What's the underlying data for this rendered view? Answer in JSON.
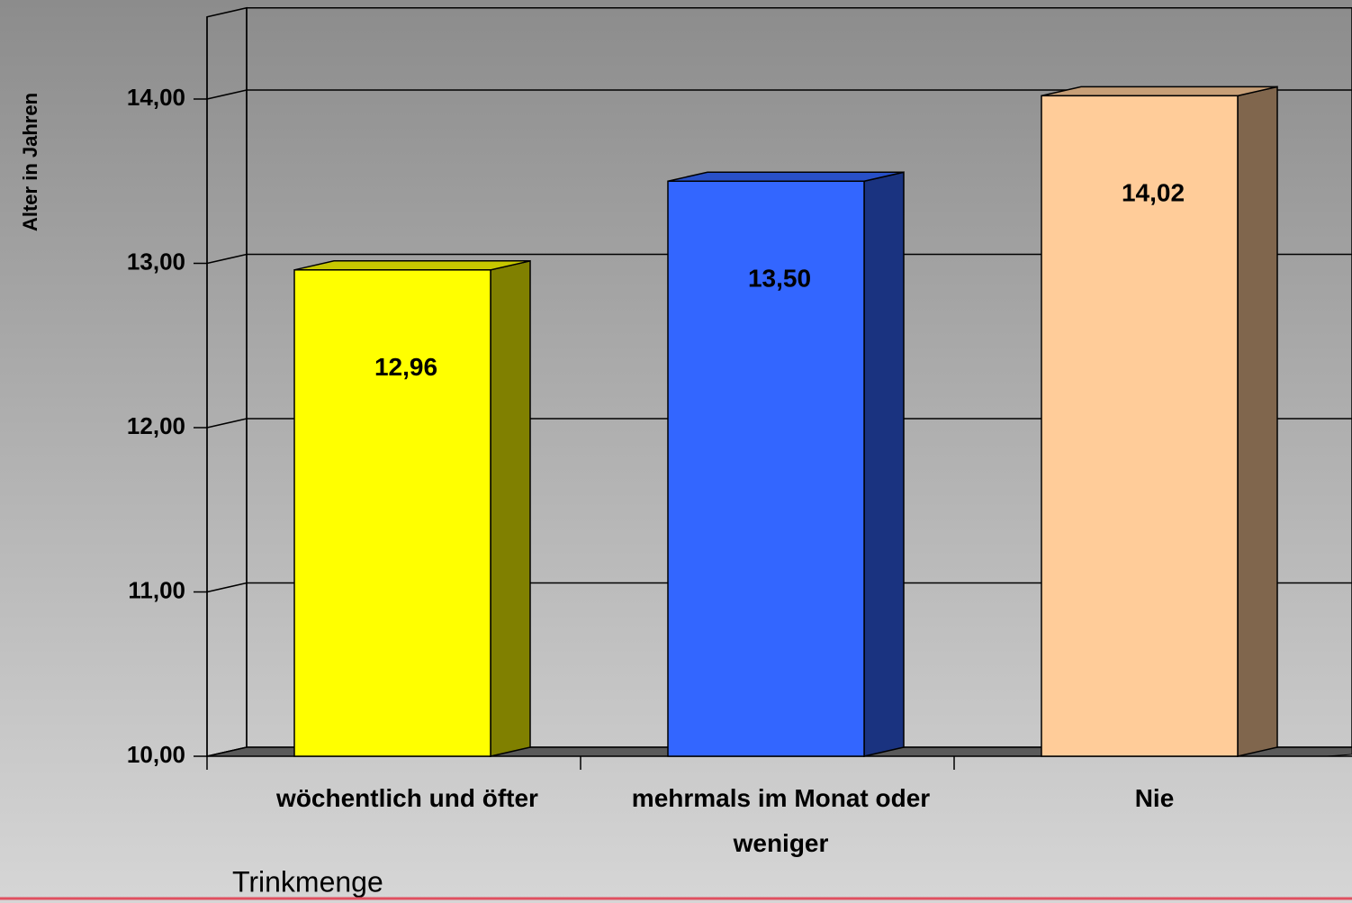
{
  "chart_data": {
    "type": "bar3d",
    "y_axis_label": "Alter in Jahren",
    "x_axis_label": "Trinkmenge",
    "categories": [
      "wöchentlich und öfter",
      "mehrmals im Monat oder weniger",
      "Nie"
    ],
    "values": [
      12.96,
      13.5,
      14.02
    ],
    "value_labels": [
      "12,96",
      "13,50",
      "14,02"
    ],
    "colors": [
      "#ffff00",
      "#3366ff",
      "#ffcc99"
    ],
    "ylim": [
      10,
      14.5
    ],
    "yticks": [
      {
        "value": 10,
        "label": "10,00"
      },
      {
        "value": 11,
        "label": "11,00"
      },
      {
        "value": 12,
        "label": "12,00"
      },
      {
        "value": 13,
        "label": "13,00"
      },
      {
        "value": 14,
        "label": "14,00"
      }
    ],
    "grid": true
  }
}
